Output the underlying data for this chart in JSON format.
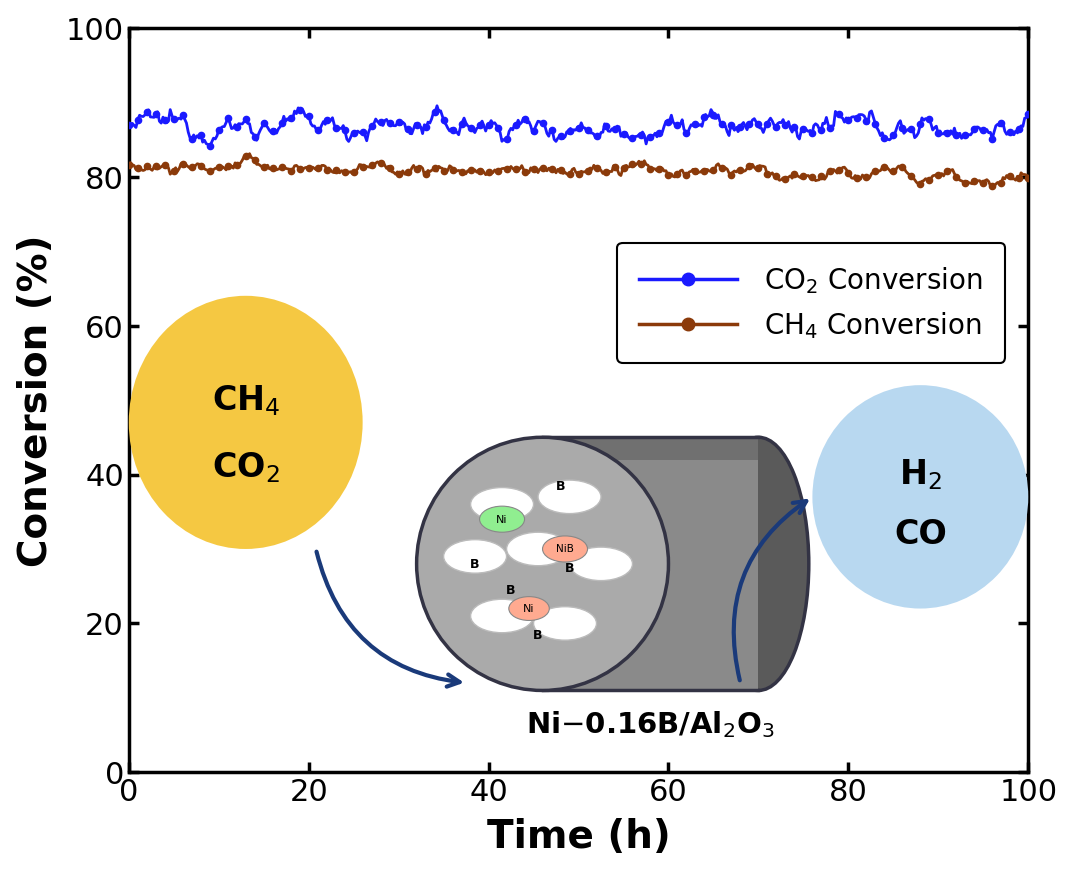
{
  "co2_color": "#1a1aff",
  "ch4_color": "#8B3A0A",
  "co2_mean": 87.0,
  "ch4_mean": 81.5,
  "x_min": 0,
  "x_max": 100,
  "y_min": 0,
  "y_max": 100,
  "xlabel": "Time (h)",
  "ylabel": "Conversion (%)",
  "yticks": [
    0,
    20,
    40,
    60,
    80,
    100
  ],
  "xticks": [
    0,
    20,
    40,
    60,
    80,
    100
  ],
  "legend_co2": "CO$_2$ Conversion",
  "legend_ch4": "CH$_4$ Conversion",
  "yellow_circle_color": "#F5C842",
  "blue_circle_color": "#B8D8F0",
  "arrow_color": "#1a3a7a",
  "cyl_body_color": "#8a8a8a",
  "cyl_face_color": "#aaaaaa",
  "cyl_top_color": "#6a6a6a",
  "cyl_outline_color": "#333344",
  "ni_green_color": "#90EE90",
  "ni_salmon_color": "#FFAA90",
  "n_points": 500
}
